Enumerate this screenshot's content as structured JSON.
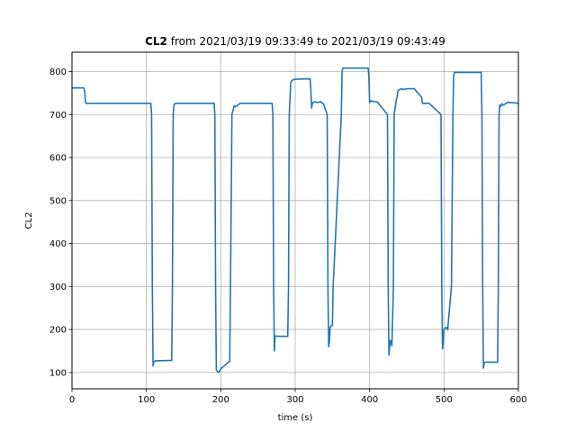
{
  "chart_data": {
    "type": "line",
    "title": {
      "bold": "CL2",
      "rest": " from 2021/03/19 09:33:49 to 2021/03/19 09:43:49"
    },
    "xlabel": "time (s)",
    "ylabel": "CL2",
    "xlim": [
      0,
      600
    ],
    "ylim": [
      62,
      845
    ],
    "xticks": [
      0,
      100,
      200,
      300,
      400,
      500,
      600
    ],
    "yticks": [
      100,
      200,
      300,
      400,
      500,
      600,
      700,
      800
    ],
    "grid": true,
    "series_color": "#1f77b4",
    "series": [
      {
        "x": [
          0,
          16,
          17,
          18,
          19,
          40,
          80,
          106,
          107,
          108,
          109,
          110,
          112,
          134,
          135,
          136,
          137,
          138,
          140,
          160,
          191,
          192,
          193,
          194,
          197,
          200,
          201,
          211,
          212,
          213,
          215,
          218,
          220,
          223,
          226,
          240,
          269,
          270,
          271,
          272,
          273,
          278,
          290,
          291,
          292,
          294,
          296,
          300,
          320,
          321,
          322,
          323,
          324,
          326,
          330,
          334,
          338,
          343,
          344,
          345,
          346,
          347,
          348,
          350,
          351,
          362,
          363,
          364,
          366,
          372,
          380,
          398,
          399,
          400,
          401,
          402,
          405,
          410,
          424,
          425,
          426,
          427,
          428,
          430,
          432,
          433,
          436,
          437,
          438,
          440,
          443,
          445,
          450,
          460,
          470,
          471,
          472,
          473,
          474,
          476,
          480,
          496,
          497,
          498,
          499,
          500,
          503,
          505,
          510,
          512,
          513,
          514,
          517,
          530,
          550,
          551,
          552,
          553,
          554,
          556,
          560,
          572,
          573,
          574,
          575,
          576,
          578,
          580,
          585,
          590,
          600
        ],
        "y": [
          762,
          762,
          755,
          730,
          726,
          726,
          726,
          726,
          700,
          300,
          115,
          125,
          127,
          128,
          300,
          700,
          722,
          725,
          726,
          726,
          726,
          700,
          300,
          105,
          100,
          108,
          110,
          125,
          126,
          300,
          700,
          720,
          718,
          722,
          726,
          726,
          726,
          700,
          300,
          150,
          185,
          184,
          184,
          300,
          700,
          775,
          780,
          782,
          783,
          760,
          715,
          725,
          728,
          730,
          728,
          730,
          725,
          700,
          300,
          160,
          170,
          205,
          208,
          210,
          300,
          700,
          800,
          808,
          808,
          808,
          808,
          808,
          790,
          728,
          730,
          732,
          730,
          730,
          700,
          300,
          140,
          160,
          175,
          162,
          300,
          700,
          735,
          740,
          755,
          758,
          760,
          758,
          760,
          760,
          740,
          726,
          726,
          726,
          726,
          726,
          726,
          700,
          300,
          155,
          170,
          200,
          205,
          200,
          300,
          700,
          790,
          798,
          798,
          798,
          798,
          700,
          300,
          110,
          123,
          124,
          124,
          124,
          300,
          700,
          722,
          718,
          725,
          722,
          728,
          728,
          726
        ]
      }
    ]
  }
}
